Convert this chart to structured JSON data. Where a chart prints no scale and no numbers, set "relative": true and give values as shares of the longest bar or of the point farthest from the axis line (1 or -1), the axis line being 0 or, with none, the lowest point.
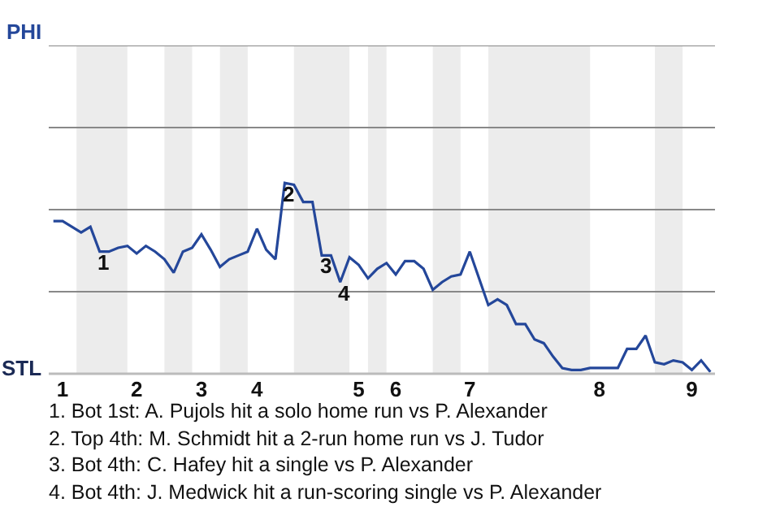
{
  "chart_data": {
    "type": "line",
    "relative": true,
    "categories": [
      null,
      "1",
      null,
      null,
      null,
      null,
      null,
      null,
      null,
      "2",
      null,
      null,
      null,
      null,
      null,
      null,
      "3",
      null,
      null,
      null,
      null,
      null,
      "4",
      null,
      null,
      null,
      null,
      null,
      null,
      null,
      null,
      null,
      null,
      "5",
      null,
      null,
      null,
      "6",
      null,
      null,
      null,
      null,
      null,
      null,
      null,
      "7",
      null,
      null,
      null,
      null,
      null,
      null,
      null,
      null,
      null,
      null,
      null,
      null,
      null,
      "8",
      null,
      null,
      null,
      null,
      null,
      null,
      null,
      null,
      null,
      "9",
      null,
      null
    ],
    "series": [
      {
        "color": "#24479a",
        "values": [
          0.8,
          0.8,
          0.77,
          0.74,
          0.77,
          0.64,
          0.64,
          0.66,
          0.67,
          0.63,
          0.67,
          0.64,
          0.6,
          0.53,
          0.64,
          0.66,
          0.73,
          0.65,
          0.56,
          0.6,
          0.62,
          0.64,
          0.76,
          0.65,
          0.6,
          1,
          0.99,
          0.9,
          0.9,
          0.62,
          0.62,
          0.48,
          0.61,
          0.57,
          0.5,
          0.55,
          0.58,
          0.52,
          0.59,
          0.59,
          0.55,
          0.44,
          0.48,
          0.51,
          0.52,
          0.64,
          0.5,
          0.36,
          0.39,
          0.36,
          0.26,
          0.26,
          0.18,
          0.16,
          0.09,
          0.03,
          0.02,
          0.02,
          0.03,
          0.03,
          0.03,
          0.03,
          0.13,
          0.13,
          0.2,
          0.06,
          0.05,
          0.07,
          0.06,
          0.02,
          0.07,
          0.01
        ]
      }
    ],
    "line_style": "solid",
    "ref_lines": [
      {
        "axis": "y",
        "value": 0.43,
        "color": "#888888"
      },
      {
        "axis": "y",
        "value": 0.86,
        "color": "#888888"
      },
      {
        "axis": "y",
        "value": 1.29,
        "color": "#888888"
      },
      {
        "axis": "y",
        "value": 1.72,
        "color": "#888888"
      }
    ],
    "annotations": [
      "PHI",
      "STL",
      {
        "text": "1",
        "y": 0.64
      },
      {
        "text": "2",
        "y": 1
      },
      {
        "text": "3",
        "y": 0.62
      },
      {
        "text": "4",
        "y": 0.48
      },
      "1. Bot 1st: A. Pujols hit a solo home run vs P. Alexander",
      "2. Top 4th: M. Schmidt hit a 2-run home run vs J. Tudor",
      "3. Bot 4th: C. Hafey hit a single vs P. Alexander",
      "4. Bot 4th: J. Medwick hit a run-scoring single vs P. Alexander"
    ]
  }
}
